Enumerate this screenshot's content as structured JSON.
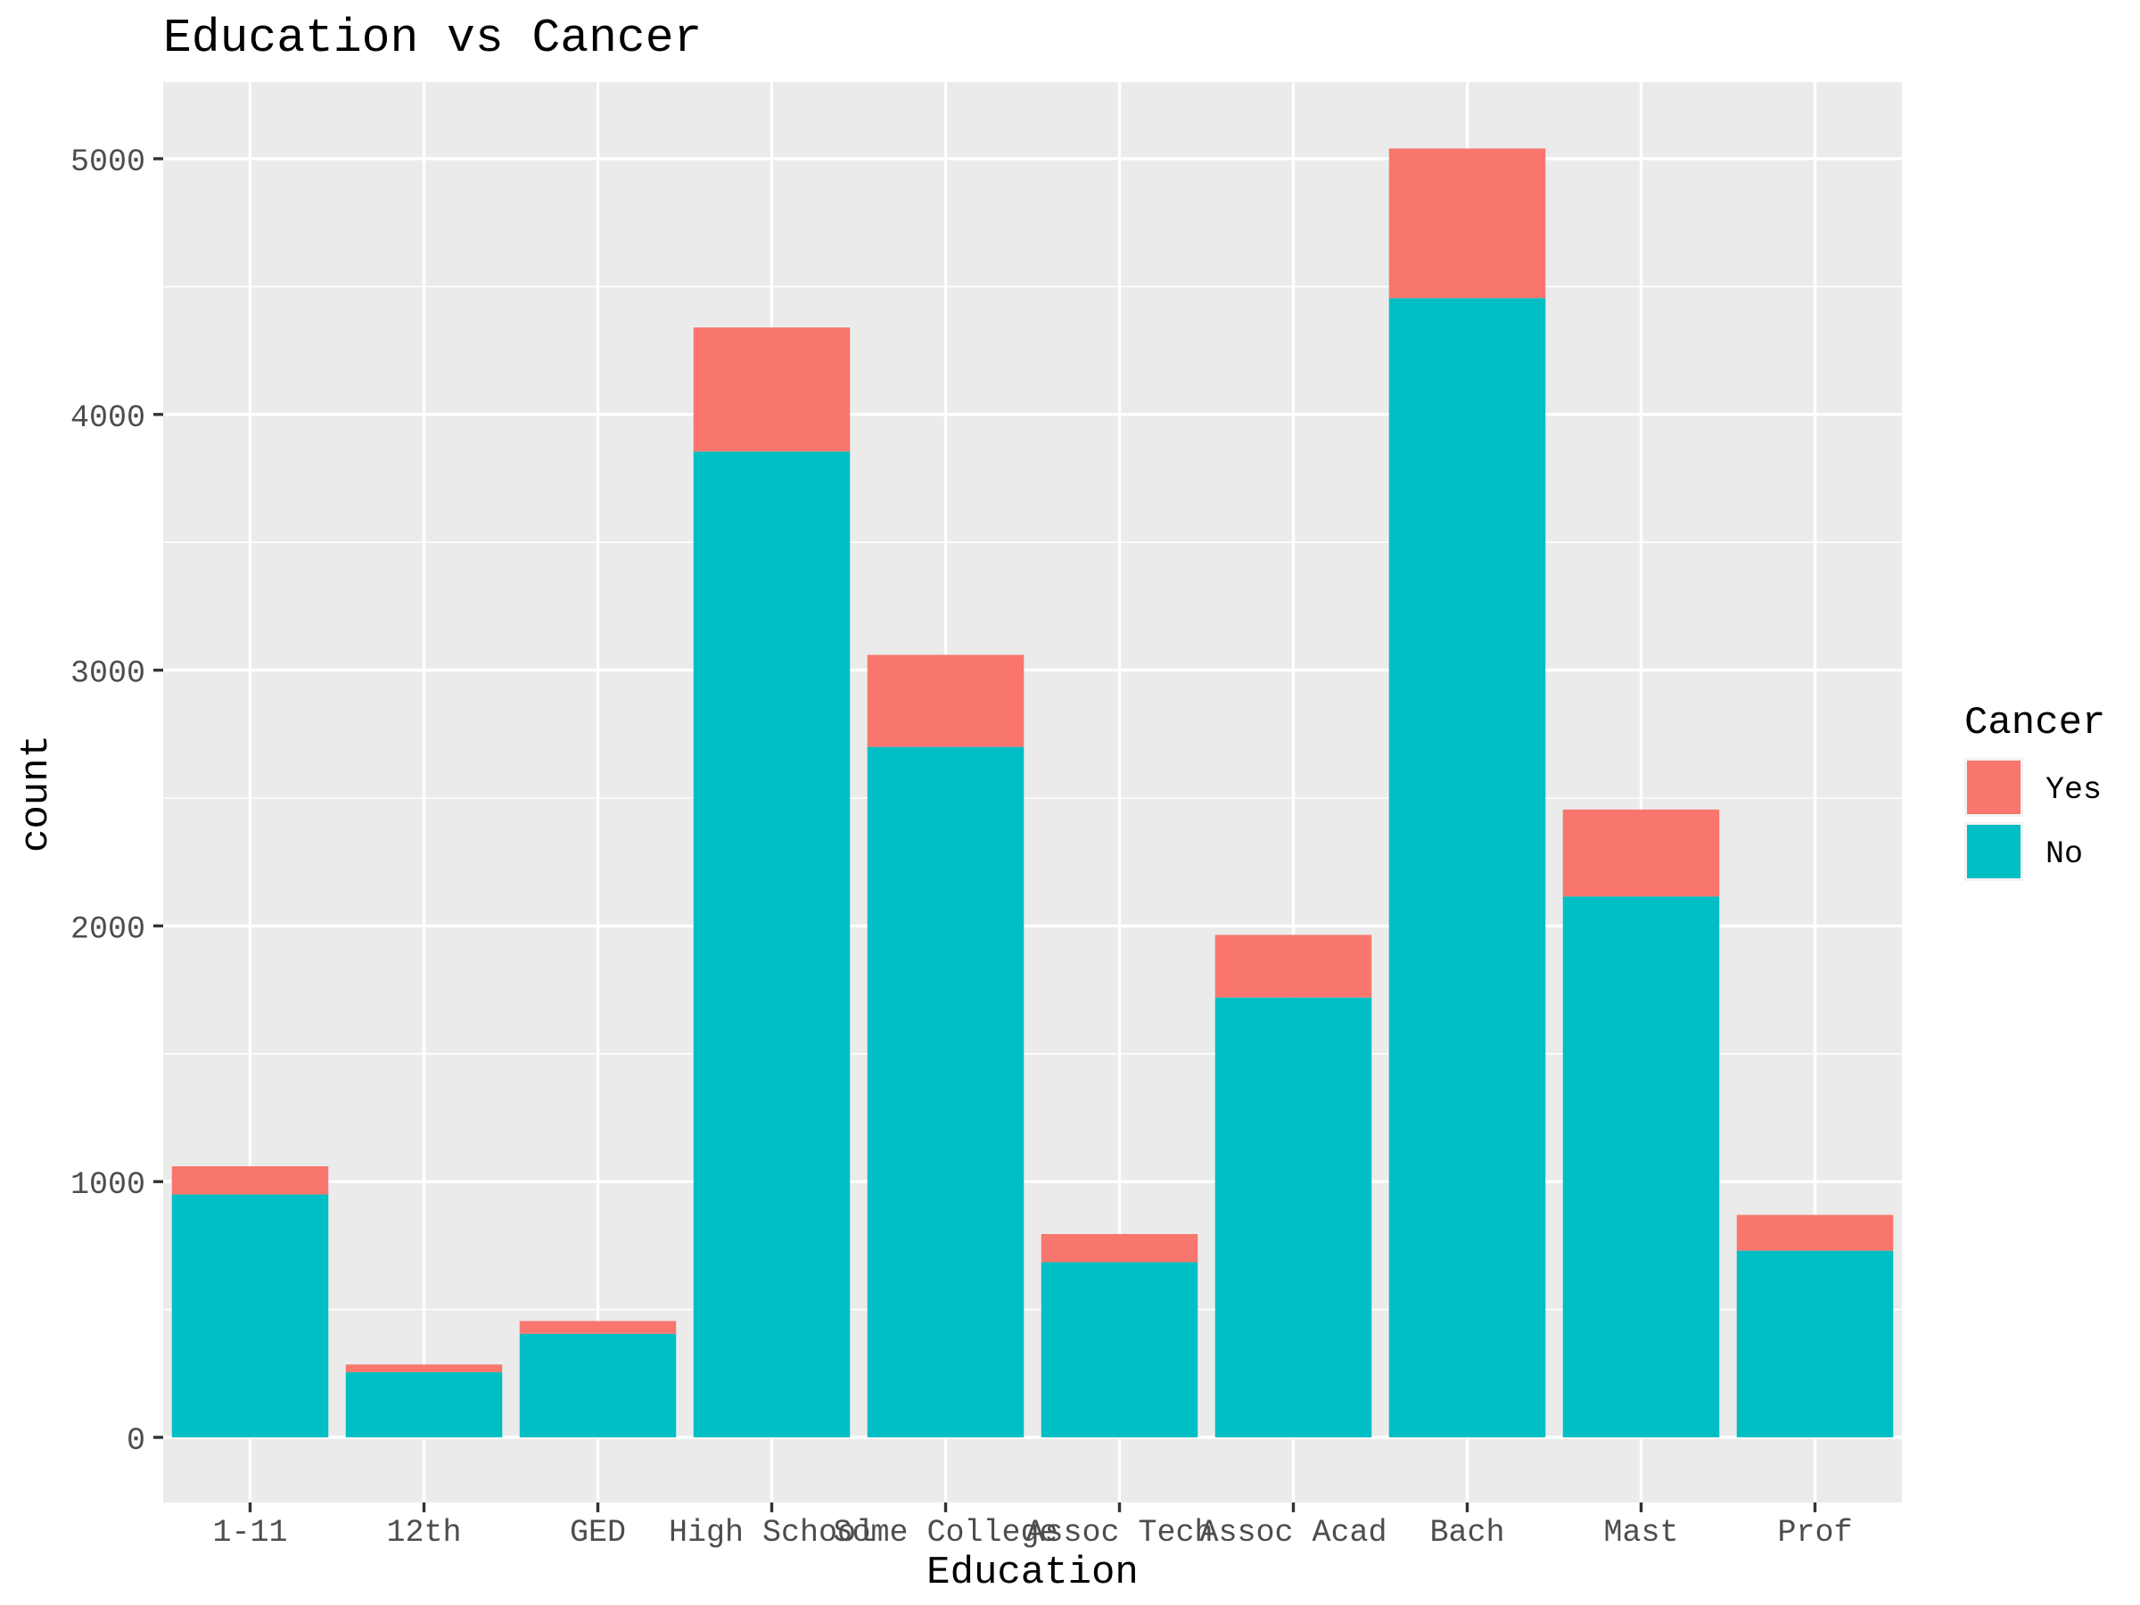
{
  "chart_data": {
    "type": "bar",
    "stacked": true,
    "title": "Education vs Cancer",
    "xlabel": "Education",
    "ylabel": "count",
    "categories": [
      "1-11",
      "12th",
      "GED",
      "High School",
      "Some College",
      "Assoc Tech",
      "Assoc Acad",
      "Bach",
      "Mast",
      "Prof"
    ],
    "series": [
      {
        "name": "No",
        "color": "#00BFC4",
        "values": [
          950,
          255,
          405,
          3855,
          2700,
          685,
          1720,
          4455,
          2115,
          730
        ]
      },
      {
        "name": "Yes",
        "color": "#F8766D",
        "values": [
          110,
          30,
          50,
          485,
          360,
          110,
          245,
          585,
          340,
          140
        ]
      }
    ],
    "ylim": [
      0,
      5300
    ],
    "yticks": [
      0,
      1000,
      2000,
      3000,
      4000,
      5000
    ],
    "grid": true,
    "legend": {
      "title": "Cancer",
      "position": "right",
      "entries": [
        "Yes",
        "No"
      ]
    },
    "colors": {
      "panel": "#EBEBEB",
      "grid": "#FFFFFF",
      "axis_text": "#4D4D4D",
      "text": "#000000"
    }
  }
}
